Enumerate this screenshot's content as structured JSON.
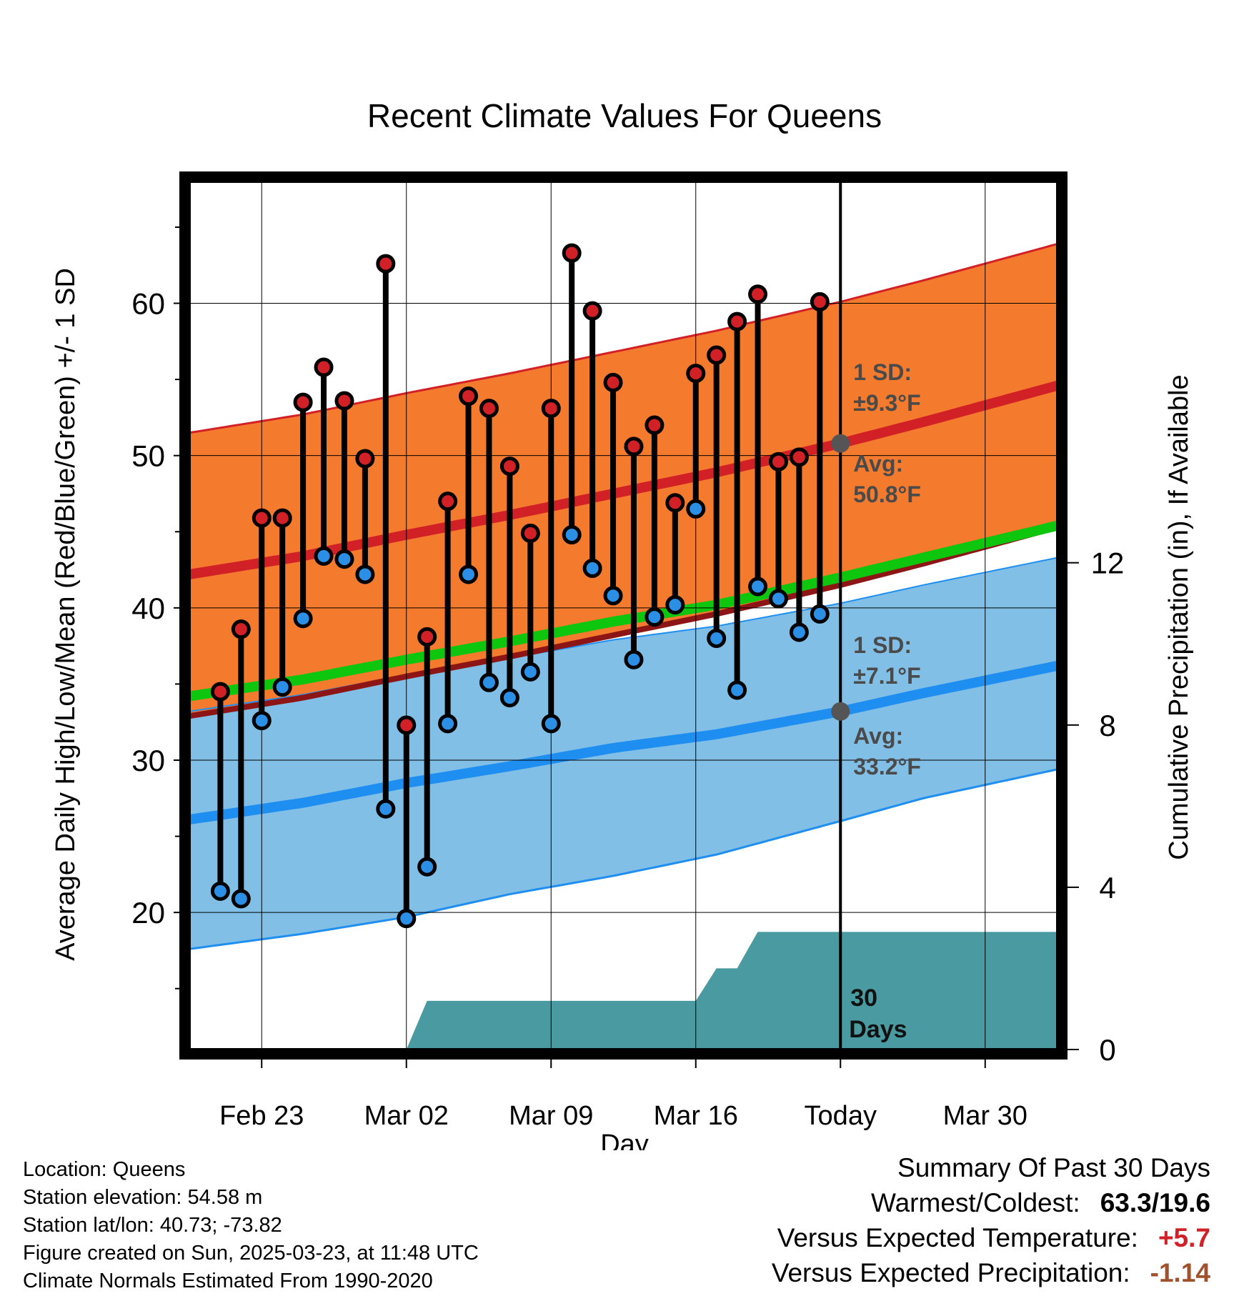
{
  "chart_data": {
    "type": "line",
    "title": "Recent Climate Values For Queens",
    "xlabel": "Day",
    "ylabel": "Average Daily High/Low/Mean (Red/Blue/Green) +/- 1 SD",
    "y2label": "Cumulative Precipitation (in), If Available",
    "ylim": [
      11,
      68
    ],
    "y2lim": [
      0,
      21.4
    ],
    "xlim": [
      -15.5,
      26.5
    ],
    "x_tick_labels": [
      {
        "x": -12,
        "label": "Feb 23"
      },
      {
        "x": -5,
        "label": "Mar 02"
      },
      {
        "x": 2,
        "label": "Mar 09"
      },
      {
        "x": 9,
        "label": "Mar 16"
      },
      {
        "x": 16,
        "label": "Today"
      },
      {
        "x": 23,
        "label": "Mar 30"
      }
    ],
    "y_ticks": [
      20,
      30,
      40,
      50,
      60
    ],
    "y_minor_ticks": [
      15,
      25,
      35,
      45,
      55,
      65
    ],
    "y2_ticks": [
      0,
      4,
      8,
      12
    ],
    "grid": true,
    "today_x": 16,
    "normals": {
      "x": [
        -15.5,
        -10,
        -5,
        0,
        5,
        10,
        16,
        20,
        26.5
      ],
      "high_avg": [
        42.2,
        43.4,
        44.8,
        46.1,
        47.5,
        48.9,
        50.8,
        52.2,
        54.6
      ],
      "high_upper": [
        51.5,
        52.7,
        54.1,
        55.4,
        56.8,
        58.2,
        60.1,
        61.5,
        63.9
      ],
      "high_lower": [
        32.9,
        34.1,
        35.5,
        36.8,
        38.2,
        39.6,
        41.5,
        42.9,
        45.3
      ],
      "low_avg": [
        26.1,
        27.2,
        28.5,
        29.6,
        30.8,
        31.7,
        33.2,
        34.4,
        36.2
      ],
      "low_upper": [
        33.2,
        34.3,
        35.6,
        36.7,
        37.9,
        38.8,
        40.3,
        41.5,
        43.3
      ],
      "low_lower": [
        17.6,
        18.6,
        19.7,
        21.2,
        22.4,
        23.8,
        26.0,
        27.5,
        29.4
      ],
      "mean_avg": [
        34.2,
        35.3,
        36.6,
        37.8,
        39.1,
        40.2,
        42.0,
        43.3,
        45.4
      ]
    },
    "observations": {
      "x": [
        -14,
        -13,
        -12,
        -11,
        -10,
        -9,
        -8,
        -7,
        -6,
        -5,
        -4,
        -3,
        -2,
        -1,
        0,
        1,
        2,
        3,
        4,
        5,
        6,
        7,
        8,
        9,
        10,
        11,
        12,
        13,
        14
      ],
      "high": [
        34.5,
        38.6,
        45.9,
        45.9,
        53.5,
        55.8,
        53.6,
        49.8,
        62.6,
        32.3,
        38.1,
        47.0,
        53.9,
        53.1,
        49.3,
        44.9,
        53.1,
        63.3,
        59.5,
        54.8,
        50.6,
        52.0,
        46.9,
        55.4,
        56.6,
        58.8,
        60.6,
        49.6,
        49.9
      ],
      "low": [
        21.4,
        20.9,
        32.6,
        34.8,
        39.3,
        43.4,
        43.2,
        42.2,
        26.8,
        19.6,
        23.0,
        32.4,
        42.2,
        35.1,
        34.1,
        35.8,
        32.4,
        44.8,
        42.6,
        40.8,
        36.6,
        39.4,
        40.2,
        46.5,
        38.0,
        34.6,
        41.4,
        40.6,
        38.4
      ]
    },
    "observations_extra": {
      "x": 15,
      "high": 60.1,
      "low": 39.6
    },
    "precip_cumulative": {
      "x": [
        -15.5,
        -6.2,
        -5.0,
        -4.0,
        9.0,
        10.0,
        11.0,
        12.0,
        13.0,
        26.5
      ],
      "values": [
        0,
        0,
        0,
        1.2,
        1.2,
        2.0,
        2.0,
        2.9,
        2.9,
        2.9
      ]
    },
    "annotations": {
      "high_sd": [
        "1 SD:",
        "±9.3°F"
      ],
      "high_avg": [
        "Avg:",
        "50.8°F"
      ],
      "low_sd": [
        "1 SD:",
        "±7.1°F"
      ],
      "low_avg": [
        "Avg:",
        "33.2°F"
      ],
      "window": [
        "30",
        "Days"
      ],
      "high_avg_value": 50.8,
      "low_avg_value": 33.2
    },
    "colors": {
      "high_band": "#f47a2e",
      "high_avg": "#d22027",
      "low_band": "#82bfe6",
      "low_avg": "#1e8ff0",
      "mean": "#0fc60f",
      "mean_below": "#8e1515",
      "precip": "#4a9aa2",
      "high_dot": "#d22027",
      "low_dot": "#2c8fe6",
      "annotation": "#4a4a4a"
    }
  },
  "meta": {
    "location": "Location: Queens",
    "elevation": "Station elevation: 54.58 m",
    "latlon": "Station lat/lon: 40.73; -73.82",
    "created": "Figure created on Sun, 2025-03-23, at 11:48 UTC",
    "normals": "Climate Normals Estimated From 1990-2020"
  },
  "summary": {
    "heading": "Summary Of Past 30 Days",
    "warm_cold_label": "Warmest/Coldest:",
    "warm_cold_value": "63.3/19.6",
    "temp_label": "Versus Expected Temperature:",
    "temp_value": "+5.7",
    "temp_color": "#d22027",
    "precip_label": "Versus Expected Precipitation:",
    "precip_value": "-1.14",
    "precip_color": "#a0522d"
  }
}
